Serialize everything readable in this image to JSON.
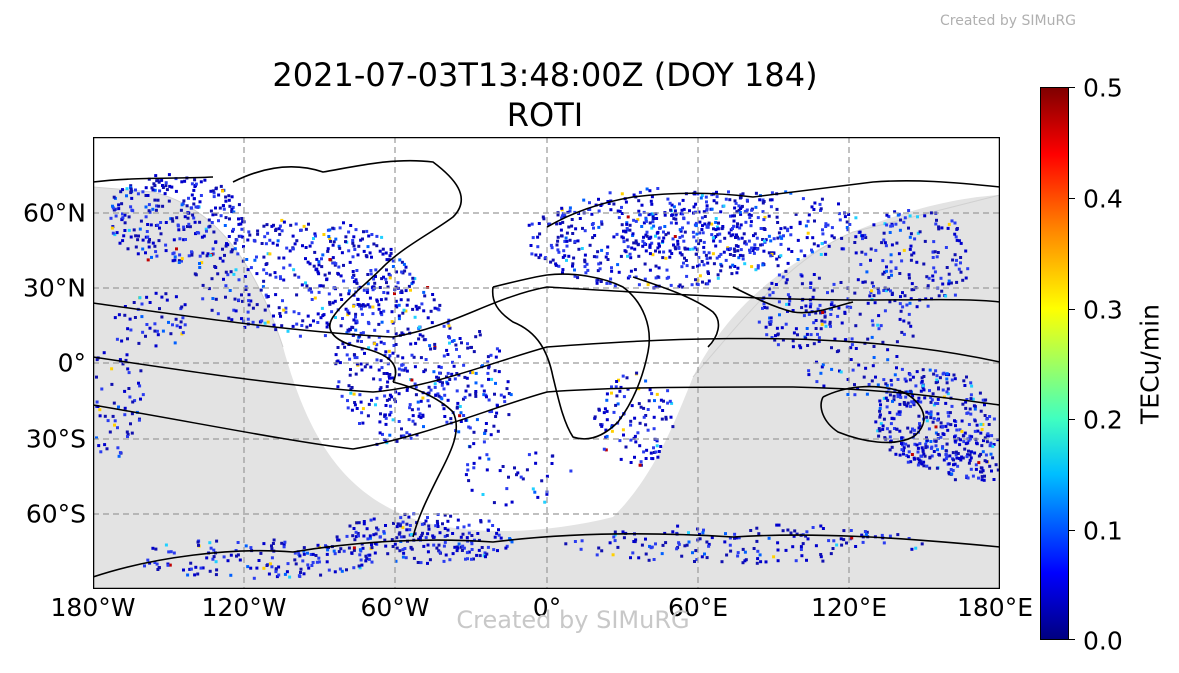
{
  "credit_top": "Created by SIMuRG",
  "credit_center": "Created by SIMuRG",
  "title": {
    "line1": "2021-07-03T13:48:00Z (DOY 184)",
    "line2": "ROTI"
  },
  "map": {
    "projection": "plate-carree",
    "lat_ticks": [
      "60°N",
      "30°N",
      "0°",
      "30°S",
      "60°S"
    ],
    "lon_ticks": [
      "180°W",
      "120°W",
      "60°W",
      "0°",
      "60°E",
      "120°E",
      "180°E"
    ],
    "gridlines": true,
    "night_shade_color": "#e3e3e3",
    "coast_color": "#000000"
  },
  "colorbar": {
    "label": "TECu/min",
    "ticks": [
      "0.5",
      "0.4",
      "0.3",
      "0.2",
      "0.1",
      "0.0"
    ],
    "range": [
      0.0,
      0.5
    ],
    "colormap": "jet"
  }
}
